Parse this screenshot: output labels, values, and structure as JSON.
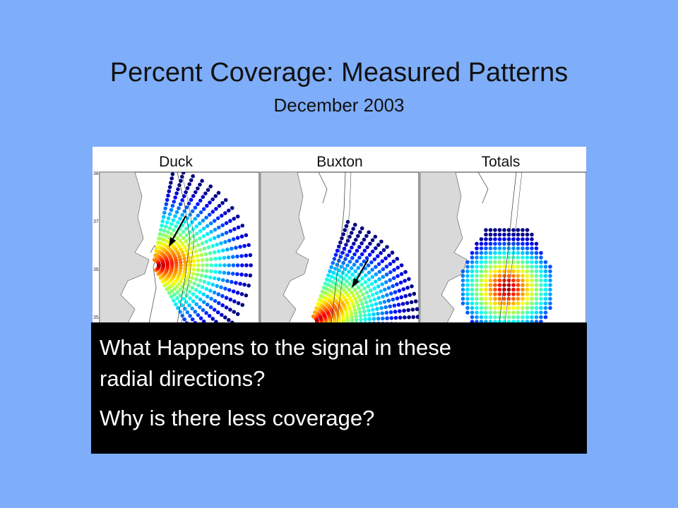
{
  "slide": {
    "title": "Percent Coverage: Measured Patterns",
    "subtitle": "December 2003"
  },
  "figure": {
    "panels": [
      {
        "name": "Duck"
      },
      {
        "name": "Buxton"
      },
      {
        "name": "Totals"
      }
    ],
    "lat_ticks": [
      "38",
      "37",
      "36",
      "35"
    ]
  },
  "caption": {
    "line1": "What Happens to the signal in these",
    "line2": "radial directions?",
    "line3": "Why is there less coverage?"
  },
  "colors": {
    "background": "#7eadf9",
    "caption_bg": "#000000",
    "caption_text": "#ffffff"
  }
}
